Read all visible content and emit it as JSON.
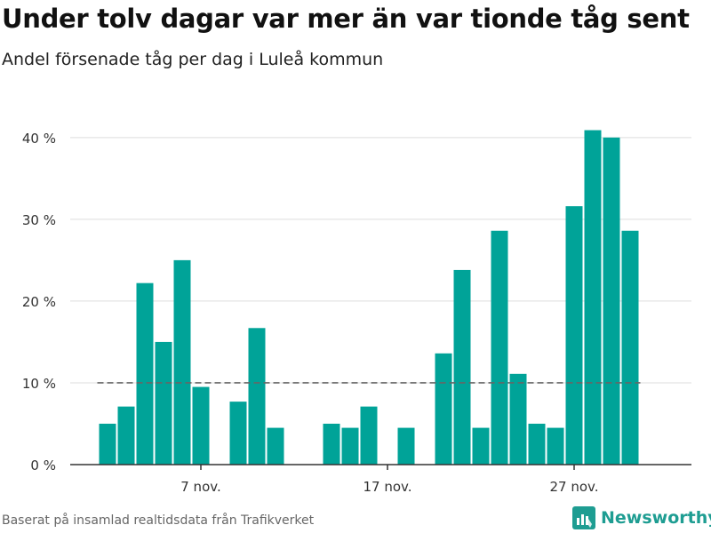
{
  "header": {
    "title": "Under tolv dagar var mer än var tionde tåg sent",
    "subtitle": "Andel försenade tåg per dag i Luleå kommun"
  },
  "footer": {
    "source": "Baserat på insamlad realtidsdata från Trafikverket",
    "brand": "Newsworthy"
  },
  "colors": {
    "bar": "#00a398",
    "reference_line": "#666666",
    "grid": "#dddddd",
    "axis": "#333333",
    "brand": "#1e9d92"
  },
  "chart_data": {
    "type": "bar",
    "title": "Under tolv dagar var mer än var tionde tåg sent",
    "subtitle": "Andel försenade tåg per dag i Luleå kommun",
    "x": [
      "2019-11-02",
      "2019-11-03",
      "2019-11-04",
      "2019-11-05",
      "2019-11-06",
      "2019-11-07",
      "2019-11-08",
      "2019-11-09",
      "2019-11-10",
      "2019-11-11",
      "2019-11-12",
      "2019-11-13",
      "2019-11-14",
      "2019-11-15",
      "2019-11-16",
      "2019-11-17",
      "2019-11-18",
      "2019-11-19",
      "2019-11-20",
      "2019-11-21",
      "2019-11-22",
      "2019-11-23",
      "2019-11-24",
      "2019-11-25",
      "2019-11-26",
      "2019-11-27",
      "2019-11-28",
      "2019-11-29",
      "2019-11-30"
    ],
    "values": [
      5,
      7.1,
      22.2,
      15,
      25,
      9.5,
      0,
      7.7,
      16.7,
      4.5,
      0,
      0,
      5,
      4.5,
      7.1,
      0,
      4.5,
      0,
      13.6,
      23.8,
      4.5,
      28.6,
      11.1,
      5,
      4.5,
      31.6,
      40.9,
      40,
      28.6
    ],
    "xticks": [
      {
        "x": "2019-11-07",
        "label": "7 nov."
      },
      {
        "x": "2019-11-17",
        "label": "17 nov."
      },
      {
        "x": "2019-11-27",
        "label": "27 nov."
      }
    ],
    "yticks": [
      {
        "value": 0,
        "label": "0 %"
      },
      {
        "value": 10,
        "label": "10 %"
      },
      {
        "value": 20,
        "label": "20 %"
      },
      {
        "value": 30,
        "label": "30 %"
      },
      {
        "value": 40,
        "label": "40 %"
      }
    ],
    "ylim": [
      0,
      44
    ],
    "reference_line": {
      "value": 10,
      "style": "dashed"
    },
    "grid": true,
    "xlabel": "",
    "ylabel": ""
  }
}
